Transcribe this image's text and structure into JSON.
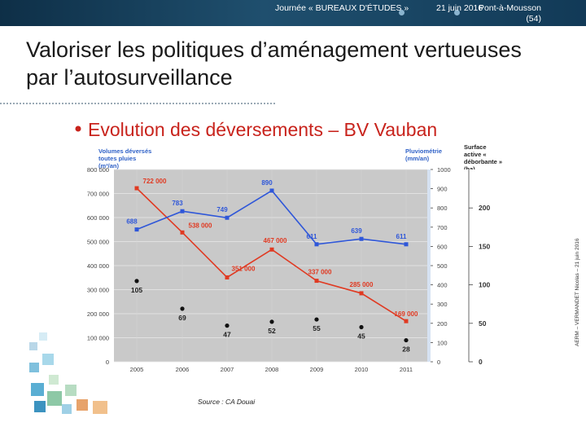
{
  "header": {
    "event": "Journée « BUREAUX D'ÉTUDES »",
    "date": "21 juin 2016",
    "place": "Pont-à-Mousson (54)"
  },
  "slide_title": "Valoriser les politiques d’aménagement vertueuses par l’autosurveillance",
  "side_text": "AERM – VERMANDET Nicolas – 21 juin 2016",
  "source": "Source : CA Douai",
  "colors": {
    "header_bg": "#1b4562",
    "title_red": "#c8231c",
    "axis_blue": "#2f61c7",
    "plot_bg": "#c9c9c9",
    "line_red": "#e03a22",
    "line_blue": "#2f57d9",
    "dots": "#111111"
  },
  "chart_data": {
    "type": "line",
    "title": "Evolution des déversements – BV Vauban",
    "ylabel_left": "Volumes déversés toutes pluies (m³/an)",
    "ylabel_right": "Pluviométrie (mm/an)",
    "ylabel_right2": "Surface active « déborbante » (ha)",
    "x": [
      "2005",
      "2006",
      "2007",
      "2008",
      "2009",
      "2010",
      "2011"
    ],
    "ylim_left": [
      0,
      800000
    ],
    "yticks_left": [
      "0",
      "100 000",
      "200 000",
      "300 000",
      "400 000",
      "500 000",
      "600 000",
      "700 000",
      "800 000"
    ],
    "ylim_right": [
      0,
      1000
    ],
    "yticks_right": [
      "0",
      "100",
      "200",
      "300",
      "400",
      "500",
      "600",
      "700",
      "800",
      "900",
      "1000"
    ],
    "ylim_right2": [
      0,
      250
    ],
    "yticks_right2": [
      "0",
      "50",
      "100",
      "150",
      "200"
    ],
    "series": [
      {
        "axis": "left",
        "style": "line",
        "values": [
          722000,
          538000,
          351000,
          467000,
          337000,
          285000,
          169000
        ],
        "labels": [
          "722 000",
          "538 000",
          "351 000",
          "467 000",
          "337 000",
          "285 000",
          "169 000"
        ]
      },
      {
        "axis": "right",
        "style": "line",
        "values": [
          688,
          783,
          749,
          890,
          611,
          639,
          611
        ],
        "labels": [
          "688",
          "783",
          "749",
          "890",
          "611",
          "639",
          "611"
        ]
      },
      {
        "axis": "right2",
        "style": "scatter",
        "values": [
          105,
          69,
          47,
          52,
          55,
          45,
          28
        ],
        "labels": [
          "105",
          "69",
          "47",
          "52",
          "55",
          "45",
          "28"
        ]
      }
    ],
    "grid": true
  }
}
